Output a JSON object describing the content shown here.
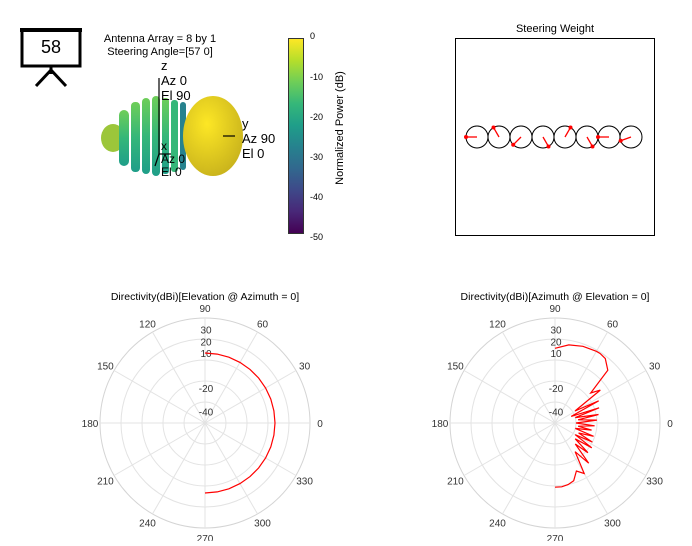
{
  "badge": {
    "number": "58"
  },
  "info": {
    "line1": "Antenna Array = 8 by 1",
    "line2": "Steering Angle=[57 0]"
  },
  "pattern3d": {
    "axis_z": {
      "letter": "z",
      "az": "Az 0",
      "el": "El 90"
    },
    "axis_y": {
      "letter": "y",
      "az": "Az 90",
      "el": "El 0"
    },
    "axis_x": {
      "letter": "x",
      "az": "Az 0",
      "el": "El 0"
    }
  },
  "colorbar": {
    "label": "Normalized Power (dB)",
    "ticks": [
      "0",
      "-10",
      "-20",
      "-30",
      "-40",
      "-50"
    ],
    "colors": [
      "#fde725",
      "#b5de2b",
      "#6ece58",
      "#35b779",
      "#1f9e89",
      "#26828e",
      "#31688e",
      "#3e4989",
      "#482878",
      "#440154"
    ]
  },
  "steering": {
    "title": "Steering Weight",
    "element_count": 8,
    "arrow_angles_deg": [
      180,
      120,
      225,
      300,
      60,
      300,
      180,
      200
    ]
  },
  "chart_data": [
    {
      "type": "polar",
      "title": "Directivity(dBi)[Elevation @ Azimuth = 0]",
      "rlim": [
        -50,
        40
      ],
      "r_tick_labels": [
        "30",
        "20",
        "10",
        "-20",
        "-40"
      ],
      "r_tick_values": [
        30,
        20,
        10,
        -20,
        -40
      ],
      "theta_tick_labels": [
        "0",
        "30",
        "60",
        "90",
        "120",
        "150",
        "180",
        "210",
        "240",
        "270",
        "300",
        "330"
      ],
      "grid": true,
      "series": [
        {
          "color": "#ff0000",
          "theta_deg": [
            90,
            80,
            70,
            60,
            50,
            40,
            30,
            20,
            10,
            0,
            -10,
            -20,
            -30,
            -40,
            -50,
            -60,
            -70,
            -80,
            -90
          ],
          "r": [
            10,
            10,
            10,
            10,
            10,
            10,
            10,
            10,
            10,
            10,
            10,
            10,
            10,
            10,
            10,
            10,
            10,
            10,
            10
          ]
        }
      ]
    },
    {
      "type": "polar",
      "title": "Directivity(dBi)[Azimuth @ Elevation = 0]",
      "rlim": [
        -50,
        40
      ],
      "r_tick_labels": [
        "30",
        "20",
        "10",
        "-20",
        "-40"
      ],
      "r_tick_values": [
        30,
        20,
        10,
        -20,
        -40
      ],
      "theta_tick_labels": [
        "0",
        "30",
        "60",
        "90",
        "120",
        "150",
        "180",
        "210",
        "240",
        "270",
        "300",
        "330"
      ],
      "grid": true,
      "series": [
        {
          "color": "#ff0000",
          "theta_deg": [
            90,
            80,
            70,
            60,
            57,
            52,
            45,
            40,
            36,
            31,
            27,
            22,
            19,
            15,
            11,
            8,
            4,
            0,
            -4,
            -8,
            -11,
            -15,
            -19,
            -23,
            -27,
            -30,
            -34,
            -38,
            -42,
            -46,
            -50,
            -55,
            -60,
            -66,
            -72,
            -78,
            -84,
            -90
          ],
          "r": [
            14,
            18,
            20,
            21,
            21,
            20,
            14,
            -10,
            -2,
            -30,
            -8,
            -35,
            -10,
            -32,
            -12,
            -30,
            -14,
            -32,
            -16,
            -30,
            -18,
            -32,
            -15,
            -28,
            -14,
            -30,
            -12,
            -28,
            -12,
            -25,
            -5,
            -20,
            0,
            -5,
            2,
            4,
            5,
            5
          ]
        }
      ]
    }
  ]
}
